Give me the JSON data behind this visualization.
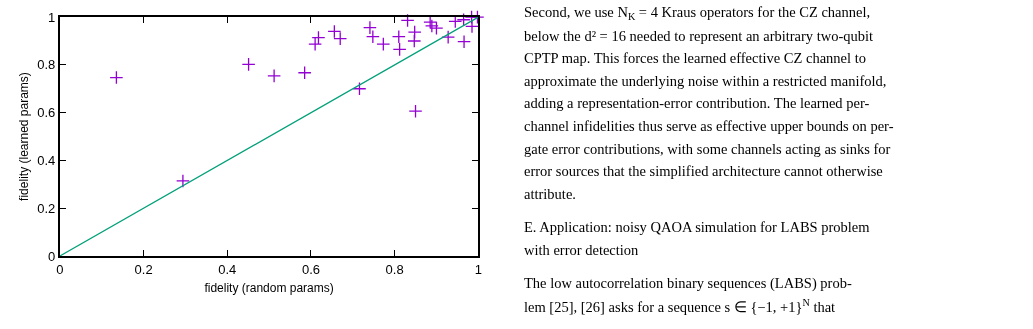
{
  "chart_data": {
    "type": "scatter",
    "xlabel": "fidelity (random params)",
    "ylabel": "fidelity (learned params)",
    "xlim": [
      0,
      1
    ],
    "ylim": [
      0,
      1
    ],
    "xticks": [
      0,
      0.2,
      0.4,
      0.6,
      0.8,
      1
    ],
    "yticks": [
      0,
      0.2,
      0.4,
      0.6,
      0.8,
      1
    ],
    "series": [
      {
        "marker": "cross",
        "color": "#9400d3",
        "x": [
          0.135,
          0.294,
          0.451,
          0.512,
          0.585,
          0.61,
          0.618,
          0.656,
          0.67,
          0.716,
          0.741,
          0.748,
          0.773,
          0.81,
          0.812,
          0.831,
          0.848,
          0.847,
          0.85,
          0.885,
          0.889,
          0.9,
          0.928,
          0.945,
          0.965,
          0.966,
          0.984,
          0.985,
          0.998
        ],
        "values": [
          0.747,
          0.314,
          0.802,
          0.754,
          0.767,
          0.887,
          0.914,
          0.94,
          0.91,
          0.7,
          0.956,
          0.918,
          0.887,
          0.918,
          0.865,
          0.986,
          0.937,
          0.9,
          0.606,
          0.979,
          0.963,
          0.954,
          0.916,
          0.982,
          0.989,
          0.897,
          1.0,
          0.961,
          1.0
        ]
      },
      {
        "type": "line",
        "marker": "none",
        "line_style": "solid",
        "color": "#00a07a",
        "x": [
          0,
          1
        ],
        "values": [
          0,
          1
        ]
      }
    ],
    "annotations": [
      "Second, we use N$_{K}$ = 4 Kraus operators for the CZ channel,",
      "below the d² = 16 needed to represent an arbitrary two-qubit",
      "CPTP map. This forces the learned effective CZ channel to",
      "approximate the underlying noise within a restricted manifold,",
      "adding a representation-error contribution. The learned per-",
      "channel infidelities thus serve as effective upper bounds on per-",
      "gate error contributions, with some channels acting as sinks for",
      "error sources that the simplified architecture cannot otherwise",
      "attribute.",
      "E. Application: noisy QAOA simulation for LABS problem",
      "with error detection",
      "The low autocorrelation binary sequences (LABS) prob-",
      "lem [25], [26] asks for a sequence s ∈ {−1, +1}$^{N}$ that"
    ]
  }
}
